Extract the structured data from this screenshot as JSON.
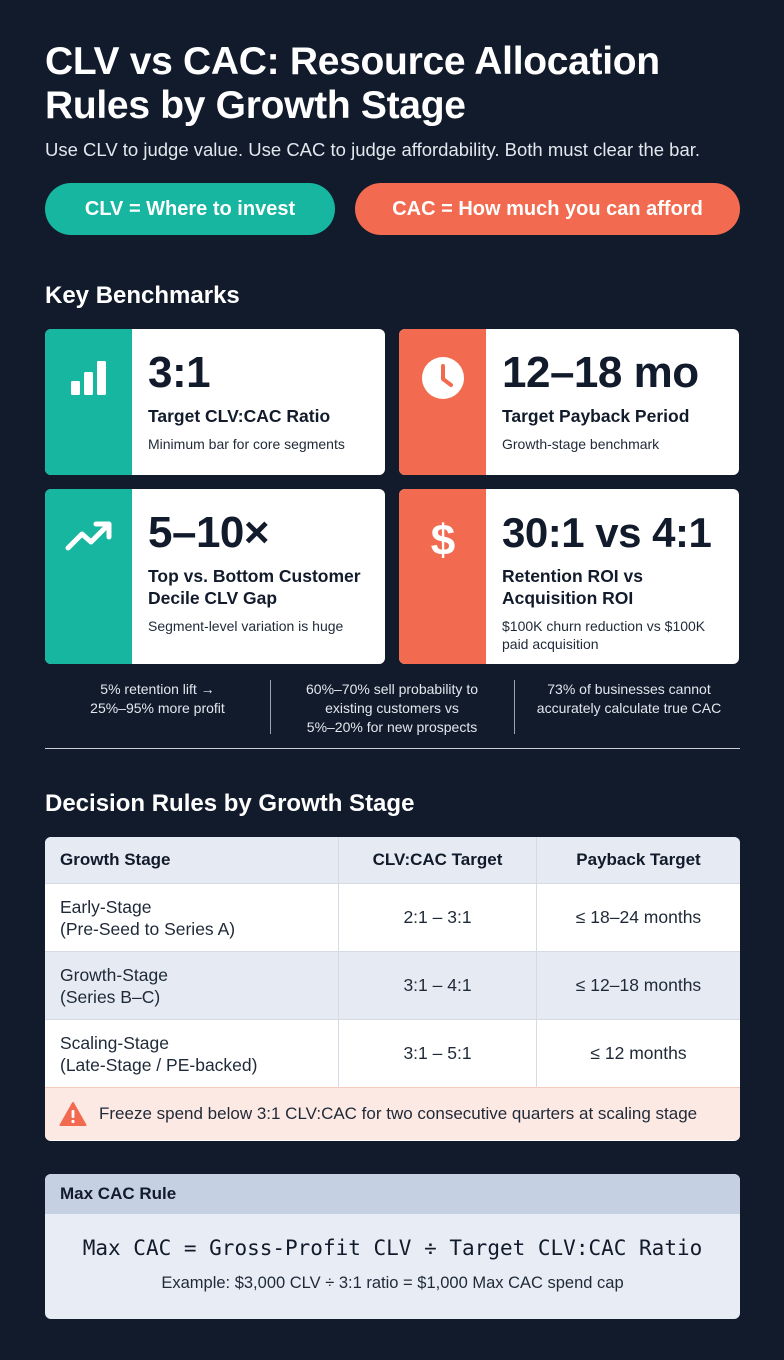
{
  "header": {
    "title": "CLV vs CAC: Resource Allocation Rules by Growth Stage",
    "subtitle": "Use CLV to judge value. Use CAC to judge affordability. Both must clear the bar."
  },
  "pills": {
    "clv": "CLV = Where to invest",
    "cac": "CAC = How much you can afford"
  },
  "benchmarks": {
    "section_title": "Key Benchmarks",
    "cards": [
      {
        "icon": "bar-chart-icon",
        "value": "3:1",
        "label": "Target CLV:CAC Ratio",
        "desc": "Minimum bar for core segments",
        "accent": "#17b6a0"
      },
      {
        "icon": "clock-icon",
        "value": "12–18 mo",
        "label": "Target Payback Period",
        "desc": "Growth-stage benchmark",
        "accent": "#f26a4f"
      },
      {
        "icon": "trend-up-icon",
        "value": "5–10×",
        "label_line1": "Top vs. Bottom Customer",
        "label_line2": "Decile CLV Gap",
        "desc": "Segment-level variation is huge",
        "accent": "#17b6a0"
      },
      {
        "icon": "dollar-icon",
        "value": "30:1 vs 4:1",
        "label_line1": "Retention ROI vs",
        "label_line2": "Acquisition ROI",
        "desc_line1": "$100K churn reduction vs $100K",
        "desc_line2": "paid acquisition",
        "accent": "#f26a4f"
      }
    ],
    "stats": [
      {
        "line1": "5% retention lift →",
        "line2": "25%–95% more profit"
      },
      {
        "line1": "60%–70% sell probability to",
        "line2": "existing customers vs",
        "line3": "5%–20% for new prospects"
      },
      {
        "line1": "73% of businesses cannot",
        "line2": "accurately calculate true CAC"
      }
    ]
  },
  "decision_rules": {
    "section_title": "Decision Rules by Growth Stage",
    "columns": [
      "Growth Stage",
      "CLV:CAC Target",
      "Payback Target"
    ],
    "rows": [
      {
        "stage": "Early-Stage",
        "detail": "(Pre-Seed to Series A)",
        "ratio": "2:1 – 3:1",
        "payback": "≤ 18–24 months"
      },
      {
        "stage": "Growth-Stage",
        "detail": "(Series B–C)",
        "ratio": "3:1 – 4:1",
        "payback": "≤ 12–18 months"
      },
      {
        "stage": "Scaling-Stage",
        "detail": "(Late-Stage / PE-backed)",
        "ratio": "3:1 – 5:1",
        "payback": "≤ 12 months"
      }
    ],
    "warning": "Freeze spend below 3:1 CLV:CAC for two consecutive quarters at scaling stage"
  },
  "max_cac": {
    "title": "Max CAC Rule",
    "formula": "Max CAC = Gross-Profit CLV ÷ Target CLV:CAC Ratio",
    "example": "Example: $3,000 CLV ÷ 3:1 ratio = $1,000 Max CAC spend cap"
  },
  "colors": {
    "background": "#121b2b",
    "teal": "#17b6a0",
    "coral": "#f26a4f"
  }
}
